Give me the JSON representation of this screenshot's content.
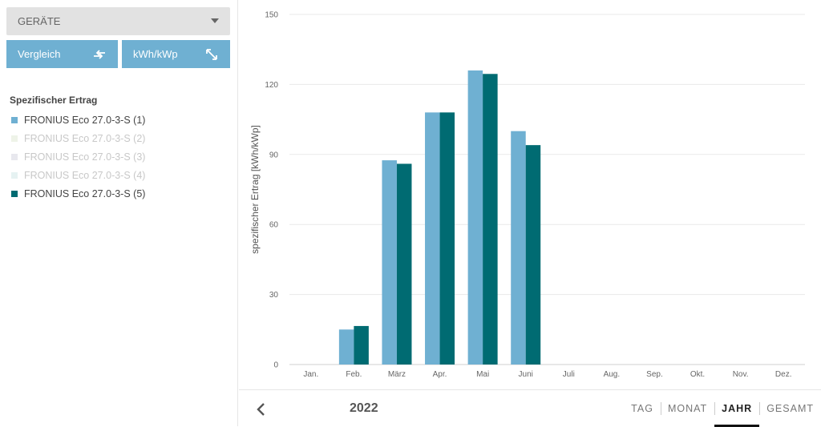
{
  "sidebar": {
    "dropdown_label": "GERÄTE",
    "compare_button": "Vergleich",
    "unit_button": "kWh/kWp",
    "legend_title": "Spezifischer Ertrag",
    "legend_items": [
      {
        "label": "FRONIUS Eco 27.0-3-S (1)",
        "color": "#6fb0d2",
        "active": true
      },
      {
        "label": "FRONIUS Eco 27.0-3-S (2)",
        "color": "#eef3e8",
        "active": false
      },
      {
        "label": "FRONIUS Eco 27.0-3-S (3)",
        "color": "#e8e8ee",
        "active": false
      },
      {
        "label": "FRONIUS Eco 27.0-3-S (4)",
        "color": "#e6f2f2",
        "active": false
      },
      {
        "label": "FRONIUS Eco 27.0-3-S (5)",
        "color": "#006b72",
        "active": true
      }
    ]
  },
  "footer": {
    "year": "2022",
    "tabs": [
      "TAG",
      "MONAT",
      "JAHR",
      "GESAMT"
    ],
    "active_tab": "JAHR"
  },
  "chart_data": {
    "type": "bar",
    "ylabel": "spezifischer Ertrag [kWh/kWp]",
    "ylim": [
      0,
      150
    ],
    "yticks": [
      0,
      30,
      60,
      90,
      120,
      150
    ],
    "grid": true,
    "categories": [
      "Jan.",
      "Feb.",
      "März",
      "Apr.",
      "Mai",
      "Juni",
      "Juli",
      "Aug.",
      "Sep.",
      "Okt.",
      "Nov.",
      "Dez."
    ],
    "series": [
      {
        "name": "FRONIUS Eco 27.0-3-S (1)",
        "color": "#6fb0d2",
        "values": [
          0,
          15,
          87.5,
          108,
          126,
          100,
          0,
          0,
          0,
          0,
          0,
          0
        ]
      },
      {
        "name": "FRONIUS Eco 27.0-3-S (5)",
        "color": "#006b72",
        "values": [
          0,
          16.5,
          86,
          108,
          124.5,
          94,
          0,
          0,
          0,
          0,
          0,
          0
        ]
      }
    ]
  }
}
